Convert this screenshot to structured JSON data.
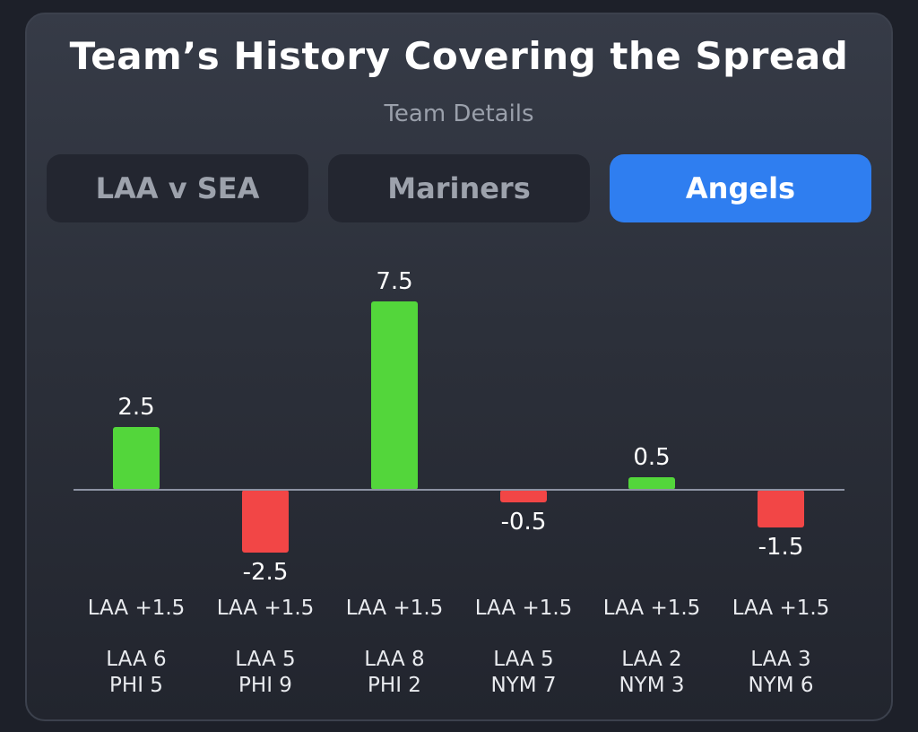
{
  "header": {
    "title": "Team’s History Covering the Spread",
    "subtitle": "Team Details"
  },
  "tabs": [
    {
      "label": "LAA v SEA",
      "active": false
    },
    {
      "label": "Mariners",
      "active": false
    },
    {
      "label": "Angels",
      "active": true
    }
  ],
  "colors": {
    "positive": "#53d63b",
    "negative": "#f24646",
    "accent": "#2f7ef0",
    "baseline": "#8d93a3"
  },
  "chart_data": {
    "type": "bar",
    "categories": [
      "LAA +1.5",
      "LAA +1.5",
      "LAA +1.5",
      "LAA +1.5",
      "LAA +1.5",
      "LAA +1.5"
    ],
    "values": [
      2.5,
      -2.5,
      7.5,
      -0.5,
      0.5,
      -1.5
    ],
    "value_labels": [
      "2.5",
      "-2.5",
      "7.5",
      "-0.5",
      "0.5",
      "-1.5"
    ],
    "scores": [
      [
        "LAA 6",
        "PHI 5"
      ],
      [
        "LAA 5",
        "PHI 9"
      ],
      [
        "LAA 8",
        "PHI 2"
      ],
      [
        "LAA 5",
        "NYM 7"
      ],
      [
        "LAA 2",
        "NYM 3"
      ],
      [
        "LAA 3",
        "NYM 6"
      ]
    ],
    "ylim": [
      -2.5,
      7.5
    ],
    "grid": false
  }
}
